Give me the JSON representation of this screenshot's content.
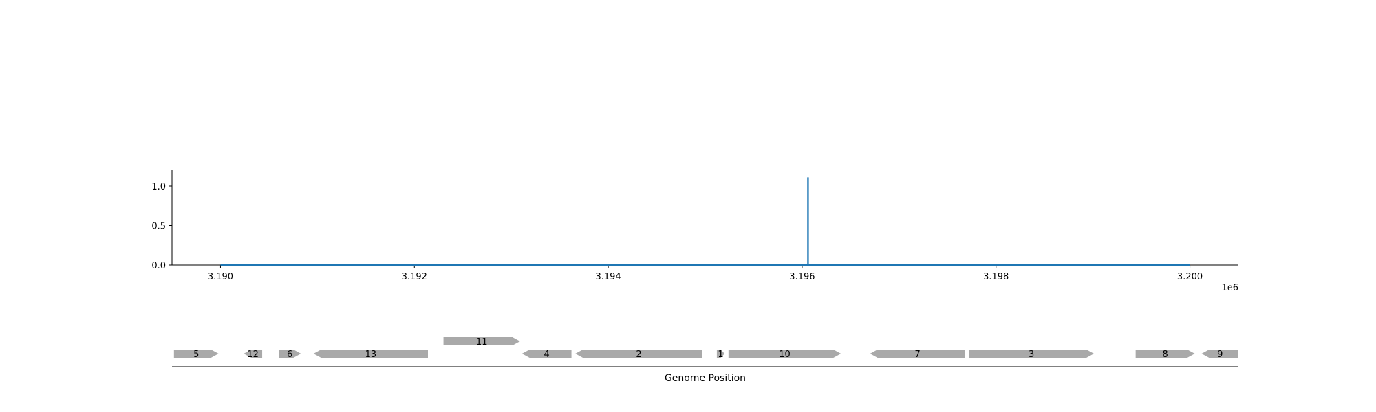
{
  "chart_data": [
    {
      "type": "line",
      "title": "",
      "xlabel": "",
      "ylabel": "",
      "x_offset_label": "1e6",
      "xlim": [
        3189500,
        3200500
      ],
      "ylim": [
        0,
        1.2
      ],
      "xticks": [
        3190000,
        3192000,
        3194000,
        3196000,
        3198000,
        3200000
      ],
      "xtick_labels": [
        "3.190",
        "3.192",
        "3.194",
        "3.196",
        "3.198",
        "3.200"
      ],
      "yticks": [
        0.0,
        0.5,
        1.0
      ],
      "ytick_labels": [
        "0.0",
        "0.5",
        "1.0"
      ],
      "grid": false,
      "series": [
        {
          "color": "#1f77b4",
          "x": [
            3190000,
            3196060,
            3196060,
            3196061,
            3196061,
            3200000
          ],
          "y": [
            0,
            0,
            1.1,
            1.1,
            0,
            0
          ]
        }
      ]
    },
    {
      "type": "gene-track",
      "xlabel": "Genome Position",
      "xlim": [
        3189500,
        3200500
      ],
      "feature_color": "#a9a9a9",
      "features": [
        {
          "label": "5",
          "start": 3189520,
          "end": 3189980,
          "strand": "+",
          "row": 0
        },
        {
          "label": "12",
          "start": 3190240,
          "end": 3190430,
          "strand": "-",
          "row": 0
        },
        {
          "label": "6",
          "start": 3190600,
          "end": 3190830,
          "strand": "+",
          "row": 0
        },
        {
          "label": "13",
          "start": 3190960,
          "end": 3192140,
          "strand": "-",
          "row": 0
        },
        {
          "label": "11",
          "start": 3192300,
          "end": 3193090,
          "strand": "+",
          "row": 1
        },
        {
          "label": "4",
          "start": 3193110,
          "end": 3193620,
          "strand": "-",
          "row": 0
        },
        {
          "label": "2",
          "start": 3193660,
          "end": 3194970,
          "strand": "-",
          "row": 0
        },
        {
          "label": "1",
          "start": 3195120,
          "end": 3195200,
          "strand": "+",
          "row": 0
        },
        {
          "label": "10",
          "start": 3195240,
          "end": 3196400,
          "strand": "+",
          "row": 0
        },
        {
          "label": "7",
          "start": 3196700,
          "end": 3197680,
          "strand": "-",
          "row": 0
        },
        {
          "label": "3",
          "start": 3197720,
          "end": 3199010,
          "strand": "+",
          "row": 0
        },
        {
          "label": "8",
          "start": 3199440,
          "end": 3200050,
          "strand": "+",
          "row": 0
        },
        {
          "label": "9",
          "start": 3200120,
          "end": 3200500,
          "strand": "-",
          "row": 0
        }
      ]
    }
  ]
}
